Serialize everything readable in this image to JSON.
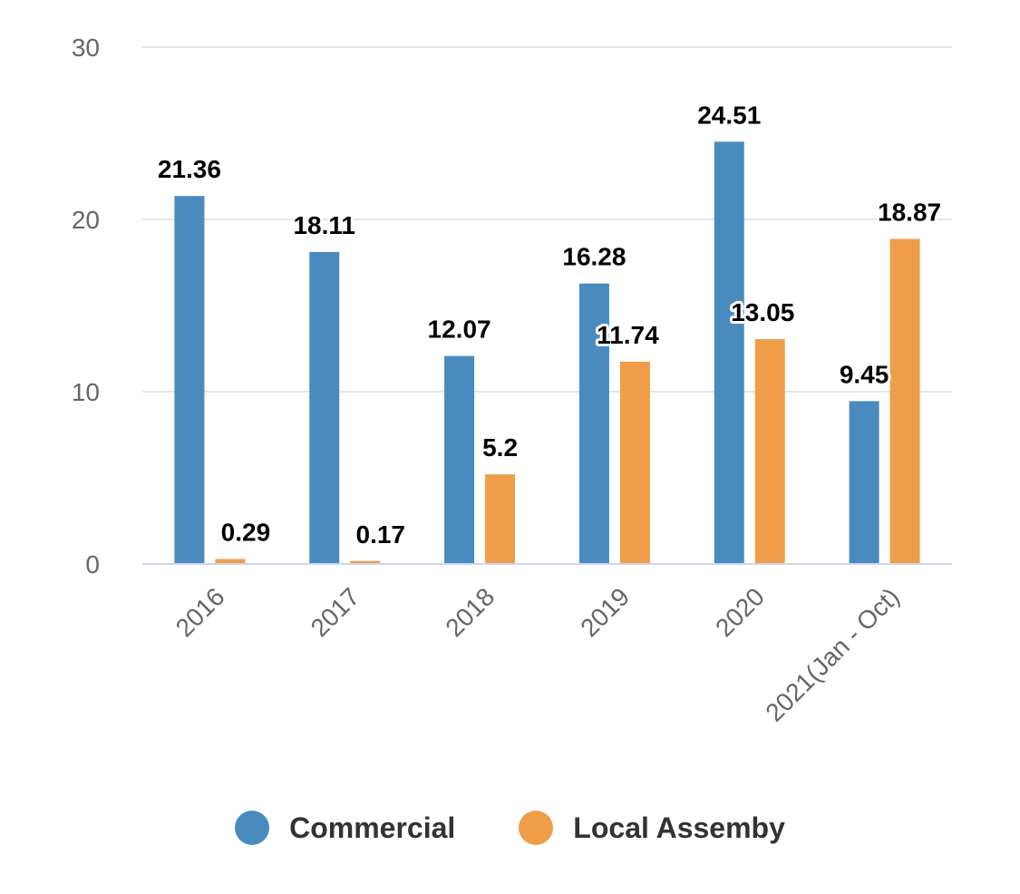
{
  "chart_data": {
    "type": "bar",
    "title": "",
    "xlabel": "",
    "ylabel": "",
    "ylim": [
      0,
      30
    ],
    "yticks": [
      0,
      10,
      20,
      30
    ],
    "categories": [
      "2016",
      "2017",
      "2018",
      "2019",
      "2020",
      "2021(Jan - Oct)"
    ],
    "series": [
      {
        "name": "Commercial",
        "color": "#4a8bbf",
        "values": [
          21.36,
          18.11,
          12.07,
          16.28,
          24.51,
          9.45
        ]
      },
      {
        "name": "Local Assemby",
        "color": "#f09d4a",
        "values": [
          0.29,
          0.17,
          5.2,
          11.74,
          13.05,
          18.87
        ]
      }
    ],
    "legend_position": "bottom-center",
    "grid": true
  },
  "legend": {
    "items": [
      {
        "label": "Commercial",
        "color": "#4a8bbf"
      },
      {
        "label": "Local Assemby",
        "color": "#f09d4a"
      }
    ]
  }
}
